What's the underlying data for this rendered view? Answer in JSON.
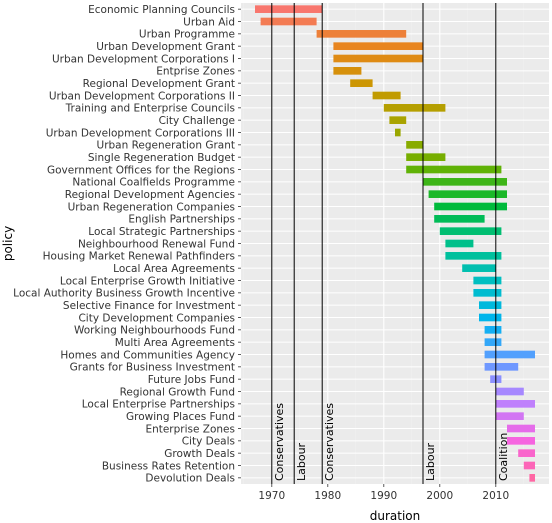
{
  "chart_data": {
    "type": "bar",
    "subtype": "horizontal-range",
    "xlabel": "duration",
    "ylabel": "policy",
    "xlim": [
      1964.5,
      2019.5
    ],
    "x_ticks": [
      1970,
      1980,
      1990,
      2000,
      2010
    ],
    "grid": true,
    "legend": "none",
    "colors": {
      "panel": "#ebebeb",
      "grid_major": "#ffffff",
      "grid_minor": "#f3f3f3",
      "era_line": "#000000"
    },
    "palette": [
      "#f8766d",
      "#e7861b",
      "#c99800",
      "#a3a500",
      "#6bb100",
      "#00ba38",
      "#00c08b",
      "#00bfc4",
      "#00b4f0",
      "#619cff",
      "#b983ff",
      "#f564e3",
      "#ff67a4"
    ],
    "series": [
      {
        "name": "Economic Planning Councils",
        "start": 1967,
        "end": 1979
      },
      {
        "name": "Urban Aid",
        "start": 1968,
        "end": 1978
      },
      {
        "name": "Urban Programme",
        "start": 1978,
        "end": 1994
      },
      {
        "name": "Urban Development Grant",
        "start": 1981,
        "end": 1997
      },
      {
        "name": "Urban Development Corporations I",
        "start": 1981,
        "end": 1997
      },
      {
        "name": "Entprise Zones",
        "start": 1981,
        "end": 1986
      },
      {
        "name": "Regional Development Grant",
        "start": 1984,
        "end": 1988
      },
      {
        "name": "Urban Development Corporations II",
        "start": 1988,
        "end": 1993
      },
      {
        "name": "Training and Enterprise Councils",
        "start": 1990,
        "end": 2001
      },
      {
        "name": "City Challenge",
        "start": 1991,
        "end": 1994
      },
      {
        "name": "Urban Development Corporations III",
        "start": 1992,
        "end": 1993
      },
      {
        "name": "Urban Regeneration Grant",
        "start": 1994,
        "end": 1997
      },
      {
        "name": "Single Regeneration Budget",
        "start": 1994,
        "end": 2001
      },
      {
        "name": "Government Offices for the Regions",
        "start": 1994,
        "end": 2011
      },
      {
        "name": "National Coalfields Programme",
        "start": 1997,
        "end": 2012
      },
      {
        "name": "Regional Development Agencies",
        "start": 1998,
        "end": 2012
      },
      {
        "name": "Urban Regeneration Companies",
        "start": 1999,
        "end": 2012
      },
      {
        "name": "English Partnerships",
        "start": 1999,
        "end": 2008
      },
      {
        "name": "Local Strategic Partnerships",
        "start": 2000,
        "end": 2011
      },
      {
        "name": "Neighbourhood Renewal Fund",
        "start": 2001,
        "end": 2006
      },
      {
        "name": "Housing Market Renewal Pathfinders",
        "start": 2001,
        "end": 2011
      },
      {
        "name": "Local Area Agreements",
        "start": 2004,
        "end": 2010
      },
      {
        "name": "Local Enterprise Growth Initiative",
        "start": 2006,
        "end": 2011
      },
      {
        "name": "Local Authority Business Growth Incentive",
        "start": 2006,
        "end": 2011
      },
      {
        "name": "Selective Finance for Investment",
        "start": 2007,
        "end": 2011
      },
      {
        "name": "City Development Companies",
        "start": 2007,
        "end": 2011
      },
      {
        "name": "Working Neighbourhoods Fund",
        "start": 2008,
        "end": 2011
      },
      {
        "name": "Multi Area Agreements",
        "start": 2008,
        "end": 2011
      },
      {
        "name": "Homes and Communities Agency",
        "start": 2008,
        "end": 2017
      },
      {
        "name": "Grants for Business Investment",
        "start": 2008,
        "end": 2014
      },
      {
        "name": "Future Jobs Fund",
        "start": 2009,
        "end": 2011
      },
      {
        "name": "Regional Growth Fund",
        "start": 2010,
        "end": 2015
      },
      {
        "name": "Local Enterprise Partnerships",
        "start": 2010,
        "end": 2017
      },
      {
        "name": "Growing Places Fund",
        "start": 2010,
        "end": 2015
      },
      {
        "name": "Enterprise Zones",
        "start": 2012,
        "end": 2017
      },
      {
        "name": "City Deals",
        "start": 2012,
        "end": 2017
      },
      {
        "name": "Growth Deals",
        "start": 2014,
        "end": 2017
      },
      {
        "name": "Business Rates Retention",
        "start": 2015,
        "end": 2017
      },
      {
        "name": "Devolution Deals",
        "start": 2016,
        "end": 2017
      }
    ],
    "annotations": [
      {
        "label": "Conservatives",
        "x": 1970
      },
      {
        "label": "Labour",
        "x": 1974
      },
      {
        "label": "Conservatives",
        "x": 1979
      },
      {
        "label": "Labour",
        "x": 1997
      },
      {
        "label": "Coalition",
        "x": 2010
      }
    ]
  }
}
